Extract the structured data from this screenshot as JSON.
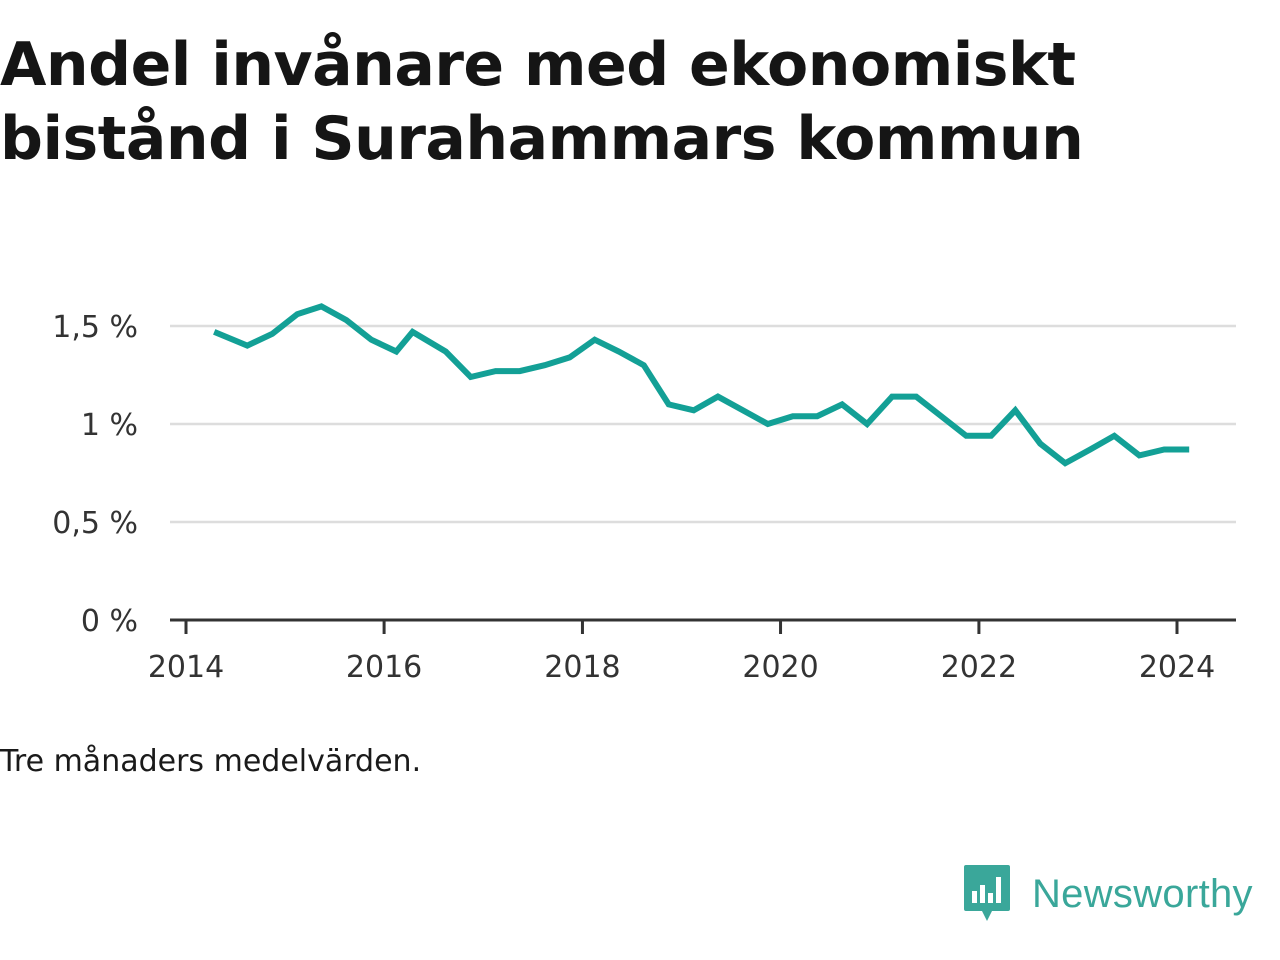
{
  "header": {
    "title": "Andel invånare med ekonomiskt bistånd i Surahammars kommun"
  },
  "footer": {
    "note": "Tre månaders medelvärden.",
    "brand": "Newsworthy",
    "brand_icon": "bar-chart-speech-bubble-icon"
  },
  "colors": {
    "line": "#13a096",
    "grid": "#dddddd",
    "axis": "#333333",
    "brand": "#3aa79a"
  },
  "chart_data": {
    "type": "line",
    "title": "Andel invånare med ekonomiskt bistånd i Surahammars kommun",
    "xlabel": "",
    "ylabel": "",
    "xlim": [
      "2014-01-01",
      "2024-12-31"
    ],
    "ylim": [
      0,
      1.5
    ],
    "y_ticks": [
      0,
      0.5,
      1,
      1.5
    ],
    "y_tick_labels": [
      "0 %",
      "0,5 %",
      "1 %",
      "1,5 %"
    ],
    "x_ticks": [
      "2014-01-01",
      "2016-01-01",
      "2018-01-01",
      "2020-01-01",
      "2022-01-01",
      "2024-01-01"
    ],
    "x_tick_labels": [
      "2014",
      "2016",
      "2018",
      "2020",
      "2022",
      "2024"
    ],
    "grid": true,
    "series": [
      {
        "x": [
          "2014-04-15",
          "2014-08-15",
          "2014-11-15",
          "2015-02-15",
          "2015-05-15",
          "2015-08-15",
          "2015-11-15",
          "2016-02-15",
          "2016-04-15",
          "2016-08-15",
          "2016-11-15",
          "2017-02-15",
          "2017-05-15",
          "2017-08-15",
          "2017-11-15",
          "2018-02-15",
          "2018-05-15",
          "2018-08-15",
          "2018-11-15",
          "2019-02-15",
          "2019-05-15",
          "2019-08-15",
          "2019-11-15",
          "2020-02-15",
          "2020-05-15",
          "2020-08-15",
          "2020-11-15",
          "2021-02-15",
          "2021-05-15",
          "2021-08-15",
          "2021-11-15",
          "2022-02-15",
          "2022-05-15",
          "2022-08-15",
          "2022-11-15",
          "2023-02-15",
          "2023-05-15",
          "2023-08-15",
          "2023-11-15",
          "2024-02-15"
        ],
        "values": [
          1.47,
          1.4,
          1.46,
          1.56,
          1.6,
          1.53,
          1.43,
          1.37,
          1.47,
          1.37,
          1.24,
          1.27,
          1.27,
          1.3,
          1.34,
          1.43,
          1.37,
          1.3,
          1.1,
          1.07,
          1.14,
          1.07,
          1.0,
          1.04,
          1.04,
          1.1,
          1.0,
          1.14,
          1.14,
          1.04,
          0.94,
          0.94,
          1.07,
          0.9,
          0.8,
          0.87,
          0.94,
          0.84,
          0.87,
          0.87
        ]
      }
    ]
  }
}
